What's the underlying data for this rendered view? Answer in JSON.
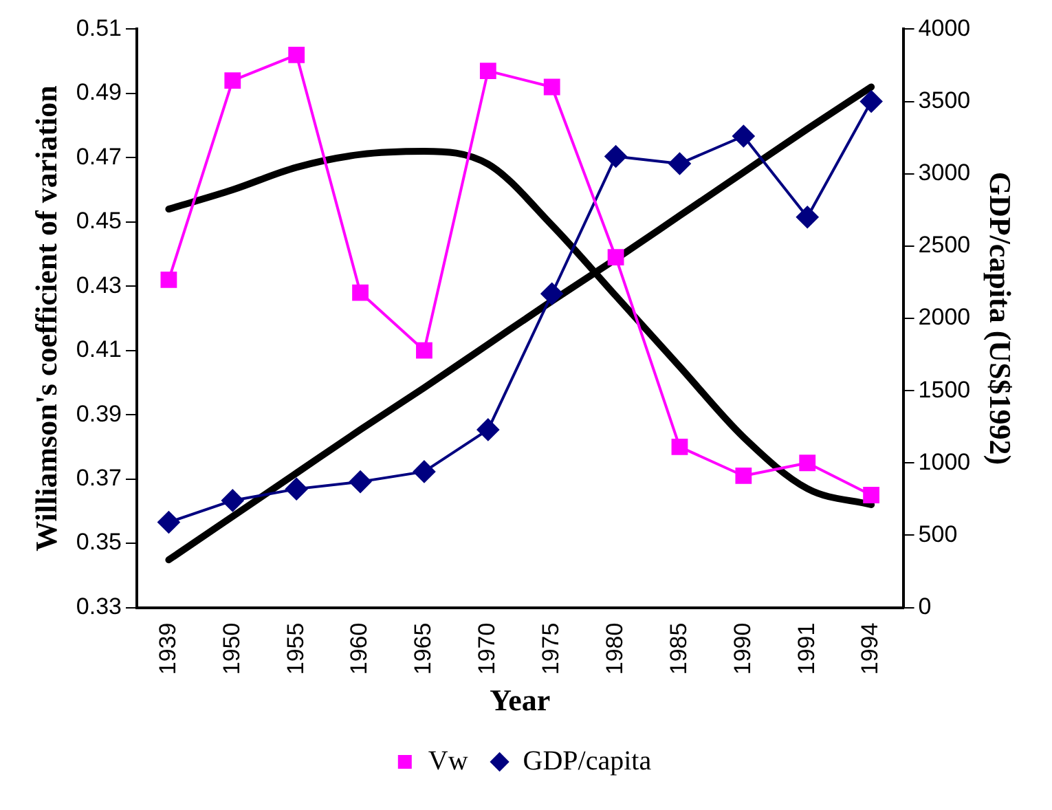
{
  "chart_data": {
    "type": "line",
    "xlabel": "Year",
    "ylabel": "Williamson's coefficient of variation",
    "y2label": "GDP/capita (US$1992)",
    "categories": [
      "1939",
      "1950",
      "1955",
      "1960",
      "1965",
      "1970",
      "1975",
      "1980",
      "1985",
      "1990",
      "1991",
      "1994"
    ],
    "series": [
      {
        "name": "Vw",
        "color": "#ff00ff",
        "marker": "square",
        "values": [
          0.432,
          0.494,
          0.502,
          0.428,
          0.41,
          0.497,
          0.492,
          0.439,
          0.38,
          0.371,
          0.375,
          0.365
        ]
      },
      {
        "name": "GDP/capita",
        "color": "#000080",
        "marker": "diamond",
        "axis": "y2",
        "values": [
          590,
          740,
          820,
          870,
          940,
          1230,
          2170,
          3120,
          3070,
          3260,
          2700,
          3500
        ]
      },
      {
        "type": "line",
        "color": "#000000",
        "marker": "none",
        "axis": "y2",
        "values": [
          330,
          630,
          930,
          1230,
          1520,
          1820,
          2120,
          2410,
          2710,
          3010,
          3310,
          3600
        ]
      },
      {
        "type": "line",
        "color": "#000000",
        "marker": "none",
        "values": [
          0.454,
          0.46,
          0.467,
          0.471,
          0.472,
          0.468,
          0.449,
          0.427,
          0.405,
          0.383,
          0.367,
          0.362
        ]
      }
    ],
    "ylim": [
      0.33,
      0.51
    ],
    "yticks": [
      0.33,
      0.35,
      0.37,
      0.39,
      0.41,
      0.43,
      0.45,
      0.47,
      0.49,
      0.51
    ],
    "y2lim": [
      0,
      4000
    ],
    "y2ticks": [
      0,
      500,
      1000,
      1500,
      2000,
      2500,
      3000,
      3500,
      4000
    ],
    "grid": false,
    "legend": "bottom"
  }
}
